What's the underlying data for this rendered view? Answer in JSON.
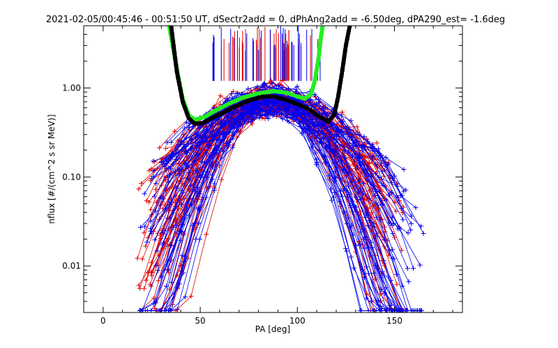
{
  "chart_data": {
    "type": "line",
    "title": "2021-02-05/00:45:46 - 00:51:50 UT, dSectr2add = 0, dPhAng2add = -6.50deg, dPA290_est=  -1.6deg",
    "xlabel": "PA [deg]",
    "ylabel": "nflux [#/(cm^2 s sr MeV)]",
    "xlim": [
      -10,
      185
    ],
    "ylim": [
      0.003,
      5.0
    ],
    "y_scale": "log",
    "x_ticks": [
      0,
      50,
      100,
      150
    ],
    "x_tick_labels": [
      "0",
      "50",
      "100",
      "150"
    ],
    "y_ticks": [
      0.01,
      0.1,
      1.0
    ],
    "y_tick_labels": [
      "0.01",
      "0.10",
      "1.00"
    ],
    "grid": false,
    "legend": "none",
    "colors": {
      "red": "#e00000",
      "blue": "#0000ee",
      "green": "#22ee22",
      "black": "#000000"
    },
    "series": [
      {
        "color": "green",
        "style": "thick-dashed",
        "x": [
          34,
          38,
          41,
          44,
          47,
          52,
          58,
          65,
          72,
          80,
          88,
          95,
          100,
          104,
          107,
          109,
          111,
          112,
          113
        ],
        "y": [
          5.0,
          1.6,
          0.75,
          0.5,
          0.44,
          0.47,
          0.56,
          0.67,
          0.78,
          0.87,
          0.92,
          0.88,
          0.8,
          0.76,
          0.85,
          1.2,
          2.2,
          3.5,
          5.0
        ]
      },
      {
        "color": "black",
        "style": "thick-dashed",
        "x": [
          35,
          38,
          41,
          44,
          47,
          51,
          56,
          62,
          68,
          75,
          82,
          88,
          94,
          100,
          106,
          111,
          116,
          119,
          121,
          123,
          125,
          127
        ],
        "y": [
          5.0,
          1.5,
          0.7,
          0.46,
          0.4,
          0.4,
          0.46,
          0.53,
          0.62,
          0.72,
          0.8,
          0.8,
          0.74,
          0.66,
          0.58,
          0.48,
          0.42,
          0.5,
          0.8,
          1.5,
          3.0,
          5.0
        ]
      }
    ],
    "scatter_bundles": [
      {
        "color": "red",
        "n_traces": 55,
        "peak_x": 88,
        "peak_y": 0.75,
        "x_range": [
          17,
          155
        ],
        "y_min": 0.003,
        "markers": "plus"
      },
      {
        "color": "blue",
        "n_traces": 55,
        "peak_x": 86,
        "peak_y": 0.75,
        "x_range": [
          18,
          165
        ],
        "y_min": 0.003,
        "markers": "plus"
      }
    ],
    "spikes": {
      "x_range": [
        56,
        112
      ],
      "y_base": 1.2,
      "y_top": 5.0,
      "colors": [
        "red",
        "blue"
      ]
    }
  }
}
